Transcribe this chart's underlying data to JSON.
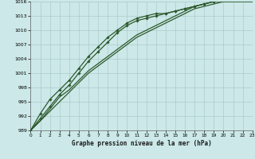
{
  "bg_color": "#cce8e8",
  "grid_color": "#aacccc",
  "line_color": "#2d5a2d",
  "title": "Graphe pression niveau de la mer (hPa)",
  "xlim": [
    0,
    23
  ],
  "ylim": [
    989,
    1016
  ],
  "yticks": [
    989,
    992,
    995,
    998,
    1001,
    1004,
    1007,
    1010,
    1013,
    1016
  ],
  "xticks": [
    0,
    1,
    2,
    3,
    4,
    5,
    6,
    7,
    8,
    9,
    10,
    11,
    12,
    13,
    14,
    15,
    16,
    17,
    18,
    19,
    20,
    21,
    22,
    23
  ],
  "series": [
    {
      "y": [
        989,
        991,
        993,
        995,
        997,
        999,
        1001,
        1002.5,
        1004,
        1005.5,
        1007,
        1008.5,
        1009.5,
        1010.5,
        1011.5,
        1012.5,
        1013.5,
        1014.5,
        1015,
        1015.5,
        1016,
        1016,
        1016,
        1016
      ],
      "marker": false
    },
    {
      "y": [
        989,
        991,
        993.5,
        996,
        997.5,
        999.5,
        1001.5,
        1003,
        1004.5,
        1006,
        1007.5,
        1009,
        1010,
        1011,
        1012,
        1013,
        1014,
        1015,
        1015.5,
        1016,
        1016,
        1016,
        1016,
        1016
      ],
      "marker": false
    },
    {
      "y": [
        989,
        991.5,
        994,
        996.5,
        998.5,
        1001,
        1003.5,
        1005.5,
        1007.5,
        1009.5,
        1011,
        1012,
        1012.5,
        1013,
        1013.5,
        1014,
        1014.5,
        1015,
        1015.5,
        1016,
        1016.5,
        1016.5,
        1016.5,
        1016.5
      ],
      "marker": true
    },
    {
      "y": [
        989,
        992.5,
        995.5,
        997.5,
        999.5,
        1002,
        1004.5,
        1006.5,
        1008.5,
        1010,
        1011.5,
        1012.5,
        1013,
        1013.5,
        1013.5,
        1014,
        1014.5,
        1015,
        1015.5,
        1016,
        1016.5,
        1016.5,
        1016.5,
        1016.5
      ],
      "marker": true
    }
  ]
}
